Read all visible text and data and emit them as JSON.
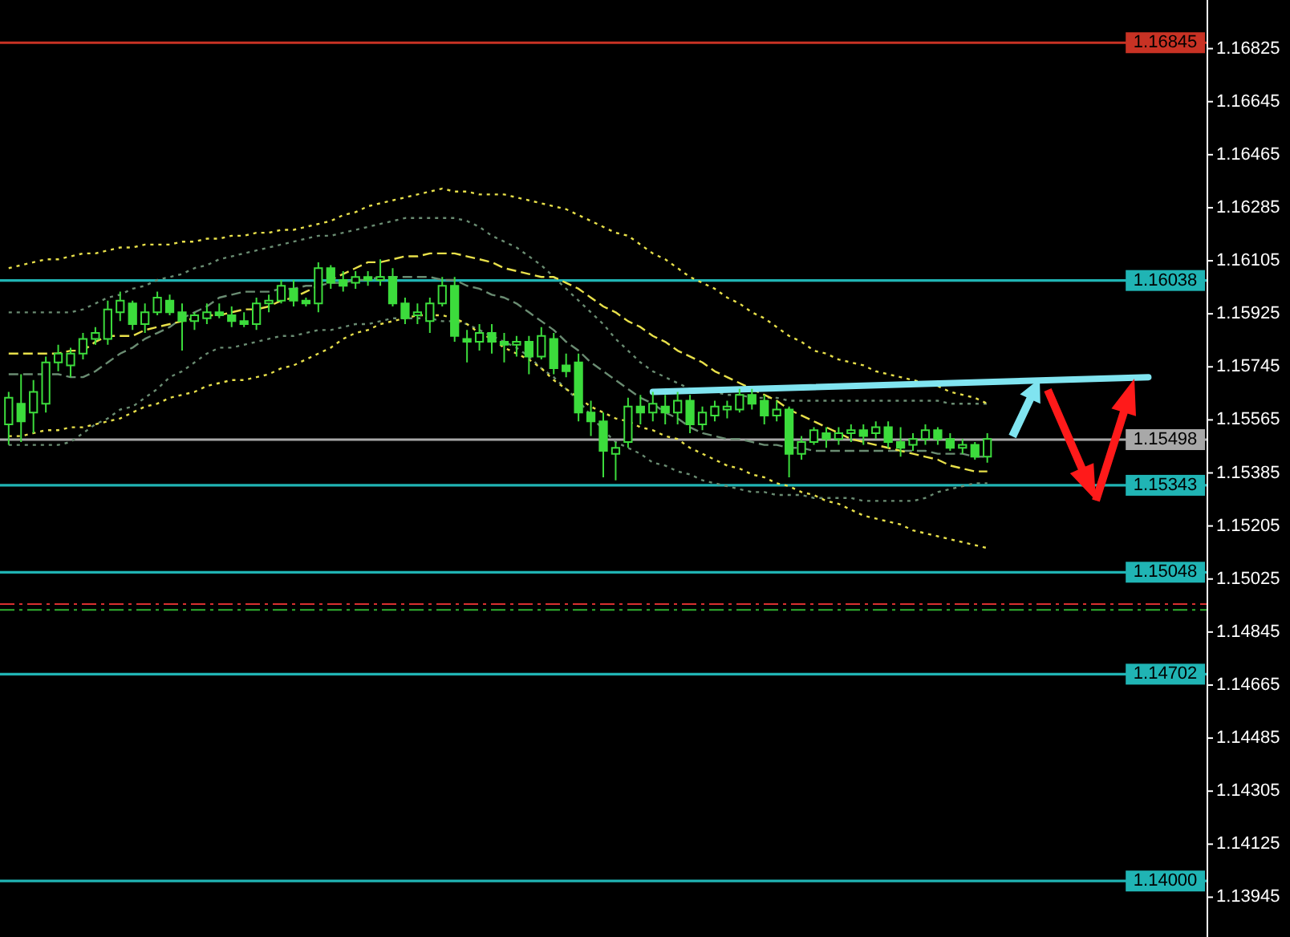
{
  "chart_data": {
    "type": "candlestick",
    "color": "#3cdc3c",
    "categories": [
      null,
      null,
      null,
      null,
      null,
      null,
      null,
      null,
      null,
      null,
      null,
      null,
      null,
      null,
      null,
      null,
      null,
      null,
      null,
      null,
      null,
      null,
      null,
      null,
      null,
      null,
      null,
      null,
      null,
      null,
      null,
      null,
      null,
      null,
      null,
      null,
      null,
      null,
      null,
      null,
      null,
      null,
      null,
      null,
      null,
      null,
      null,
      null,
      null,
      null,
      null,
      null,
      null,
      null,
      null,
      null,
      null,
      null,
      null,
      null,
      null,
      null,
      null,
      null,
      null,
      null,
      null,
      null,
      null,
      null,
      null,
      null,
      null,
      null,
      null,
      null,
      null,
      null,
      null,
      null,
      null,
      null,
      null,
      null,
      null,
      null,
      null,
      null,
      null,
      null,
      null,
      null,
      null,
      null,
      null,
      null,
      null
    ],
    "ohlc": [
      [
        1.1555,
        1.1566,
        1.1548,
        1.1564
      ],
      [
        1.1562,
        1.1572,
        1.1549,
        1.1556
      ],
      [
        1.1559,
        1.157,
        1.1552,
        1.1566
      ],
      [
        1.1562,
        1.1578,
        1.1559,
        1.1576
      ],
      [
        1.1576,
        1.1582,
        1.1573,
        1.1579
      ],
      [
        1.1575,
        1.1581,
        1.1571,
        1.1579
      ],
      [
        1.1579,
        1.1586,
        1.1577,
        1.1584
      ],
      [
        1.1584,
        1.1588,
        1.1582,
        1.1586
      ],
      [
        1.1584,
        1.1597,
        1.1582,
        1.1594
      ],
      [
        1.1593,
        1.16,
        1.159,
        1.1597
      ],
      [
        1.1596,
        1.1597,
        1.1587,
        1.1589
      ],
      [
        1.1589,
        1.1596,
        1.1586,
        1.1593
      ],
      [
        1.1593,
        1.16,
        1.1592,
        1.1598
      ],
      [
        1.1597,
        1.1599,
        1.1592,
        1.1593
      ],
      [
        1.1593,
        1.1596,
        1.158,
        1.159
      ],
      [
        1.159,
        1.1593,
        1.1587,
        1.1592
      ],
      [
        1.1591,
        1.1596,
        1.1589,
        1.1593
      ],
      [
        1.1593,
        1.1596,
        1.1591,
        1.1592
      ],
      [
        1.1592,
        1.1595,
        1.1588,
        1.159
      ],
      [
        1.159,
        1.1593,
        1.1588,
        1.1589
      ],
      [
        1.1589,
        1.1598,
        1.1587,
        1.1596
      ],
      [
        1.1596,
        1.1599,
        1.1593,
        1.1597
      ],
      [
        1.1597,
        1.1604,
        1.1596,
        1.1602
      ],
      [
        1.1601,
        1.1604,
        1.1595,
        1.1597
      ],
      [
        1.1597,
        1.1598,
        1.1595,
        1.1596
      ],
      [
        1.1596,
        1.161,
        1.1593,
        1.1608
      ],
      [
        1.1608,
        1.1609,
        1.1601,
        1.1603
      ],
      [
        1.1604,
        1.1607,
        1.16,
        1.1602
      ],
      [
        1.1603,
        1.1607,
        1.1601,
        1.1605
      ],
      [
        1.1605,
        1.1607,
        1.1602,
        1.1604
      ],
      [
        1.1604,
        1.1611,
        1.1602,
        1.1605
      ],
      [
        1.1605,
        1.1608,
        1.1595,
        1.1596
      ],
      [
        1.1596,
        1.1598,
        1.1589,
        1.1591
      ],
      [
        1.1592,
        1.1596,
        1.1589,
        1.1593
      ],
      [
        1.159,
        1.1598,
        1.1586,
        1.1596
      ],
      [
        1.1596,
        1.1605,
        1.1595,
        1.1602
      ],
      [
        1.1602,
        1.1605,
        1.1583,
        1.1585
      ],
      [
        1.1584,
        1.1587,
        1.1576,
        1.1583
      ],
      [
        1.1583,
        1.1589,
        1.158,
        1.1586
      ],
      [
        1.1586,
        1.1589,
        1.1579,
        1.1583
      ],
      [
        1.1583,
        1.1586,
        1.1576,
        1.1582
      ],
      [
        1.1582,
        1.1585,
        1.1578,
        1.1583
      ],
      [
        1.1583,
        1.1585,
        1.1572,
        1.1578
      ],
      [
        1.1578,
        1.1588,
        1.1577,
        1.1585
      ],
      [
        1.1584,
        1.1586,
        1.1572,
        1.1574
      ],
      [
        1.1575,
        1.1579,
        1.1571,
        1.1573
      ],
      [
        1.1576,
        1.1579,
        1.1556,
        1.1559
      ],
      [
        1.1559,
        1.1563,
        1.1551,
        1.1556
      ],
      [
        1.1556,
        1.1559,
        1.1537,
        1.1546
      ],
      [
        1.1545,
        1.1549,
        1.1536,
        1.1547
      ],
      [
        1.1549,
        1.1564,
        1.1547,
        1.1561
      ],
      [
        1.1561,
        1.1565,
        1.1555,
        1.1559
      ],
      [
        1.1559,
        1.1566,
        1.1556,
        1.1562
      ],
      [
        1.1561,
        1.1565,
        1.1555,
        1.1559
      ],
      [
        1.1559,
        1.1566,
        1.1555,
        1.1563
      ],
      [
        1.1563,
        1.1565,
        1.1552,
        1.1555
      ],
      [
        1.1555,
        1.1561,
        1.1553,
        1.1559
      ],
      [
        1.1558,
        1.1563,
        1.1556,
        1.1561
      ],
      [
        1.156,
        1.1563,
        1.1557,
        1.1561
      ],
      [
        1.156,
        1.1567,
        1.1559,
        1.1565
      ],
      [
        1.1565,
        1.1567,
        1.156,
        1.1562
      ],
      [
        1.1563,
        1.1565,
        1.1555,
        1.1558
      ],
      [
        1.1558,
        1.1563,
        1.1556,
        1.156
      ],
      [
        1.156,
        1.1561,
        1.1537,
        1.1545
      ],
      [
        1.1545,
        1.1551,
        1.1543,
        1.1549
      ],
      [
        1.1549,
        1.1554,
        1.1548,
        1.1553
      ],
      [
        1.1552,
        1.1554,
        1.1547,
        1.155
      ],
      [
        1.155,
        1.1554,
        1.1548,
        1.1552
      ],
      [
        1.1552,
        1.1555,
        1.1549,
        1.1553
      ],
      [
        1.1553,
        1.1555,
        1.1548,
        1.1551
      ],
      [
        1.1552,
        1.1556,
        1.155,
        1.1554
      ],
      [
        1.1554,
        1.1556,
        1.1547,
        1.1549
      ],
      [
        1.1549,
        1.1554,
        1.1544,
        1.1547
      ],
      [
        1.1548,
        1.1552,
        1.1546,
        1.155
      ],
      [
        1.155,
        1.1555,
        1.1548,
        1.1553
      ],
      [
        1.1553,
        1.1554,
        1.1548,
        1.155
      ],
      [
        1.155,
        1.1552,
        1.1546,
        1.1547
      ],
      [
        1.1547,
        1.155,
        1.1545,
        1.1548
      ],
      [
        1.1548,
        1.1549,
        1.1543,
        1.1544
      ],
      [
        1.1544,
        1.1552,
        1.1542,
        1.155
      ],
      null,
      null,
      null,
      null,
      null,
      null,
      null,
      null,
      null,
      null,
      null,
      null,
      null,
      null,
      null,
      null,
      null
    ],
    "series": [
      {
        "type": "line",
        "color": "#6a8c72",
        "line_style": "dotted",
        "values": [
          1.1593,
          1.1593,
          1.1593,
          1.1593,
          1.1593,
          1.1593,
          1.1594,
          1.1596,
          1.1598,
          1.1599,
          1.1601,
          1.1602,
          1.1604,
          1.1605,
          1.1606,
          1.1608,
          1.1609,
          1.1611,
          1.1612,
          1.1613,
          1.1614,
          1.1615,
          1.1616,
          1.1617,
          1.1618,
          1.1619,
          1.1619,
          1.162,
          1.1621,
          1.1622,
          1.1623,
          1.1624,
          1.1625,
          1.1625,
          1.1625,
          1.1625,
          1.1625,
          1.1624,
          1.1622,
          1.1619,
          1.1617,
          1.1615,
          1.1612,
          1.1609,
          1.1605,
          1.1601,
          1.1597,
          1.1593,
          1.1589,
          1.1584,
          1.158,
          1.1576,
          1.1573,
          1.1571,
          1.1569,
          1.1567,
          1.1567,
          1.1566,
          1.1565,
          1.1565,
          1.1564,
          1.1564,
          1.1564,
          1.1563,
          1.1563,
          1.1563,
          1.1563,
          1.1563,
          1.1563,
          1.1563,
          1.1563,
          1.1563,
          1.1563,
          1.1563,
          1.1563,
          1.1563,
          1.1562,
          1.1562,
          1.1562,
          1.1562,
          null,
          null,
          null,
          null,
          null,
          null,
          null,
          null,
          null,
          null,
          null,
          null,
          null,
          null,
          null,
          null,
          null
        ]
      },
      {
        "type": "line",
        "color": "#6a8c72",
        "line_style": "dashed",
        "values": [
          1.1572,
          1.1572,
          1.1572,
          1.1572,
          1.1572,
          1.1571,
          1.1571,
          1.1573,
          1.1576,
          1.1579,
          1.1581,
          1.1584,
          1.1586,
          1.1588,
          1.1591,
          1.1593,
          1.1595,
          1.1598,
          1.1599,
          1.16,
          1.16,
          1.16,
          1.1601,
          1.1601,
          1.1602,
          1.1602,
          1.1603,
          1.1603,
          1.1604,
          1.1604,
          1.1605,
          1.1605,
          1.1605,
          1.1605,
          1.1605,
          1.1604,
          1.1604,
          1.1602,
          1.1601,
          1.1599,
          1.1598,
          1.1596,
          1.1593,
          1.159,
          1.1587,
          1.1583,
          1.158,
          1.1576,
          1.1573,
          1.157,
          1.1567,
          1.1564,
          1.1562,
          1.1559,
          1.1557,
          1.1554,
          1.1552,
          1.1551,
          1.155,
          1.155,
          1.1549,
          1.1548,
          1.1548,
          1.1547,
          1.1547,
          1.1546,
          1.1546,
          1.1546,
          1.1546,
          1.1546,
          1.1546,
          1.1546,
          1.1546,
          1.1546,
          1.1546,
          1.1545,
          1.1545,
          1.1545,
          1.1544,
          1.1544,
          null,
          null,
          null,
          null,
          null,
          null,
          null,
          null,
          null,
          null,
          null,
          null,
          null,
          null,
          null,
          null,
          null
        ]
      },
      {
        "type": "line",
        "color": "#6a8c72",
        "line_style": "dotted",
        "values": [
          1.1548,
          1.1548,
          1.1548,
          1.1548,
          1.1548,
          1.1549,
          1.1552,
          1.1555,
          1.1557,
          1.156,
          1.1561,
          1.1564,
          1.1567,
          1.1571,
          1.1573,
          1.1576,
          1.1579,
          1.1581,
          1.1581,
          1.1582,
          1.1583,
          1.1584,
          1.1585,
          1.1585,
          1.1586,
          1.1587,
          1.1587,
          1.1588,
          1.1589,
          1.1589,
          1.159,
          1.1591,
          1.1591,
          1.1591,
          1.1591,
          1.159,
          1.159,
          1.1589,
          1.1587,
          1.1585,
          1.1583,
          1.1581,
          1.1578,
          1.1574,
          1.1571,
          1.1567,
          1.1563,
          1.1558,
          1.1553,
          1.1549,
          1.1547,
          1.1545,
          1.1542,
          1.1541,
          1.1539,
          1.1538,
          1.1536,
          1.1535,
          1.1534,
          1.1533,
          1.1532,
          1.1532,
          1.1531,
          1.1531,
          1.1531,
          1.153,
          1.153,
          1.153,
          1.153,
          1.1529,
          1.1529,
          1.1529,
          1.1529,
          1.1529,
          1.153,
          1.1532,
          1.1533,
          1.1534,
          1.1535,
          1.1535,
          null,
          null,
          null,
          null,
          null,
          null,
          null,
          null,
          null,
          null,
          null,
          null,
          null,
          null,
          null,
          null,
          null
        ]
      },
      {
        "type": "line",
        "color": "#e8e04a",
        "line_style": "dotted",
        "values": [
          1.1608,
          1.1609,
          1.161,
          1.1611,
          1.1611,
          1.1612,
          1.1613,
          1.1613,
          1.1614,
          1.1615,
          1.1615,
          1.1616,
          1.1616,
          1.1616,
          1.1617,
          1.1617,
          1.1618,
          1.1618,
          1.1619,
          1.1619,
          1.162,
          1.162,
          1.1621,
          1.1621,
          1.1622,
          1.1623,
          1.1624,
          1.1626,
          1.1627,
          1.1629,
          1.163,
          1.1631,
          1.1632,
          1.1633,
          1.1634,
          1.1635,
          1.1634,
          1.1634,
          1.1633,
          1.1633,
          1.1633,
          1.1632,
          1.1631,
          1.163,
          1.1629,
          1.1628,
          1.1626,
          1.1624,
          1.1622,
          1.162,
          1.1619,
          1.1616,
          1.1613,
          1.1611,
          1.1608,
          1.1605,
          1.1603,
          1.1601,
          1.1598,
          1.1596,
          1.1593,
          1.1591,
          1.1588,
          1.1585,
          1.1583,
          1.158,
          1.1579,
          1.1577,
          1.1576,
          1.1575,
          1.1573,
          1.1572,
          1.1571,
          1.157,
          1.1569,
          1.1568,
          1.1566,
          1.1565,
          1.1564,
          1.1562,
          null,
          null,
          null,
          null,
          null,
          null,
          null,
          null,
          null,
          null,
          null,
          null,
          null,
          null,
          null,
          null,
          null
        ]
      },
      {
        "type": "line",
        "color": "#e8e04a",
        "line_style": "dashed",
        "values": [
          1.1579,
          1.1579,
          1.1579,
          1.1579,
          1.1579,
          1.158,
          1.158,
          1.1583,
          1.1585,
          1.1585,
          1.1585,
          1.1587,
          1.1588,
          1.1589,
          1.159,
          1.1591,
          1.1592,
          1.1592,
          1.1593,
          1.1594,
          1.1594,
          1.1595,
          1.1597,
          1.1598,
          1.16,
          1.1602,
          1.1604,
          1.1606,
          1.1608,
          1.161,
          1.161,
          1.1611,
          1.1612,
          1.1612,
          1.1613,
          1.1613,
          1.1613,
          1.1612,
          1.1611,
          1.161,
          1.1608,
          1.1607,
          1.1606,
          1.1605,
          1.1605,
          1.1603,
          1.1601,
          1.1598,
          1.1595,
          1.1593,
          1.159,
          1.1588,
          1.1585,
          1.1583,
          1.158,
          1.1578,
          1.1576,
          1.1573,
          1.1571,
          1.1569,
          1.1567,
          1.1565,
          1.1563,
          1.156,
          1.1558,
          1.1556,
          1.1554,
          1.1552,
          1.155,
          1.1549,
          1.1548,
          1.1547,
          1.1546,
          1.1545,
          1.1544,
          1.1543,
          1.1541,
          1.154,
          1.1539,
          1.1539,
          null,
          null,
          null,
          null,
          null,
          null,
          null,
          null,
          null,
          null,
          null,
          null,
          null,
          null,
          null,
          null,
          null
        ]
      },
      {
        "type": "line",
        "color": "#e8e04a",
        "line_style": "dotted",
        "values": [
          1.1551,
          1.1551,
          1.1552,
          1.1553,
          1.1553,
          1.1554,
          1.1554,
          1.1555,
          1.1556,
          1.1557,
          1.1559,
          1.1561,
          1.1562,
          1.1564,
          1.1565,
          1.1566,
          1.1568,
          1.1569,
          1.157,
          1.157,
          1.1571,
          1.1572,
          1.1574,
          1.1575,
          1.1577,
          1.1579,
          1.1581,
          1.1584,
          1.1586,
          1.1587,
          1.1589,
          1.159,
          1.1591,
          1.1592,
          1.1592,
          1.1592,
          1.1591,
          1.1589,
          1.1586,
          1.1584,
          1.1581,
          1.1579,
          1.1577,
          1.1574,
          1.157,
          1.1567,
          1.1564,
          1.1561,
          1.1559,
          1.1557,
          1.1556,
          1.1554,
          1.1553,
          1.1551,
          1.155,
          1.1547,
          1.1545,
          1.1543,
          1.1541,
          1.154,
          1.1538,
          1.1537,
          1.1535,
          1.1534,
          1.1532,
          1.1531,
          1.1529,
          1.1528,
          1.1526,
          1.1524,
          1.1523,
          1.1522,
          1.1521,
          1.1519,
          1.1518,
          1.1517,
          1.1516,
          1.1515,
          1.1514,
          1.1513,
          null,
          null,
          null,
          null,
          null,
          null,
          null,
          null,
          null,
          null,
          null,
          null,
          null,
          null,
          null,
          null,
          null
        ]
      },
      {
        "type": "line",
        "color": "#80e4f0",
        "line_style": "solid",
        "values": [
          null,
          null,
          null,
          null,
          null,
          null,
          null,
          null,
          null,
          null,
          null,
          null,
          null,
          null,
          null,
          null,
          null,
          null,
          null,
          null,
          null,
          null,
          null,
          null,
          null,
          null,
          null,
          null,
          null,
          null,
          null,
          null,
          null,
          null,
          null,
          null,
          null,
          null,
          null,
          null,
          null,
          null,
          null,
          null,
          null,
          null,
          null,
          null,
          null,
          null,
          null,
          null,
          1.1566,
          null,
          null,
          null,
          null,
          null,
          null,
          null,
          null,
          null,
          null,
          null,
          null,
          null,
          null,
          null,
          null,
          null,
          null,
          null,
          null,
          null,
          null,
          null,
          null,
          null,
          null,
          null,
          null,
          null,
          null,
          null,
          null,
          null,
          null,
          null,
          null,
          null,
          null,
          null,
          1.1571,
          null,
          null,
          null,
          null
        ]
      }
    ],
    "ylim": [
      1.1381,
      1.1699
    ],
    "yticks": [
      1.16825,
      1.16645,
      1.16465,
      1.16285,
      1.16105,
      1.15925,
      1.15745,
      1.15565,
      1.15385,
      1.15205,
      1.15025,
      1.14845,
      1.14665,
      1.14485,
      1.14305,
      1.14125,
      1.13945
    ],
    "tick_labels": "y",
    "ref_lines": [
      {
        "axis": "y",
        "value": 1.16845,
        "label": "1.16845",
        "color": "#c83224"
      },
      {
        "axis": "y",
        "value": 1.16038,
        "label": "1.16038",
        "color": "#20b4b4"
      },
      {
        "axis": "y",
        "value": 1.15498,
        "label": "1.15498",
        "color": "#a8a8a8"
      },
      {
        "axis": "y",
        "value": 1.15343,
        "label": "1.15343",
        "color": "#20b4b4"
      },
      {
        "axis": "y",
        "value": 1.15048,
        "label": "1.15048",
        "color": "#20b4b4"
      },
      {
        "axis": "y",
        "value": 1.1494,
        "color": "#d83030",
        "line_style": "dashed"
      },
      {
        "axis": "y",
        "value": 1.1492,
        "color": "#30b030",
        "line_style": "dashed"
      },
      {
        "axis": "y",
        "value": 1.14702,
        "label": "1.14702",
        "color": "#20b4b4"
      },
      {
        "axis": "y",
        "value": 1.14,
        "label": "1.14000",
        "color": "#20b4b4"
      }
    ]
  }
}
